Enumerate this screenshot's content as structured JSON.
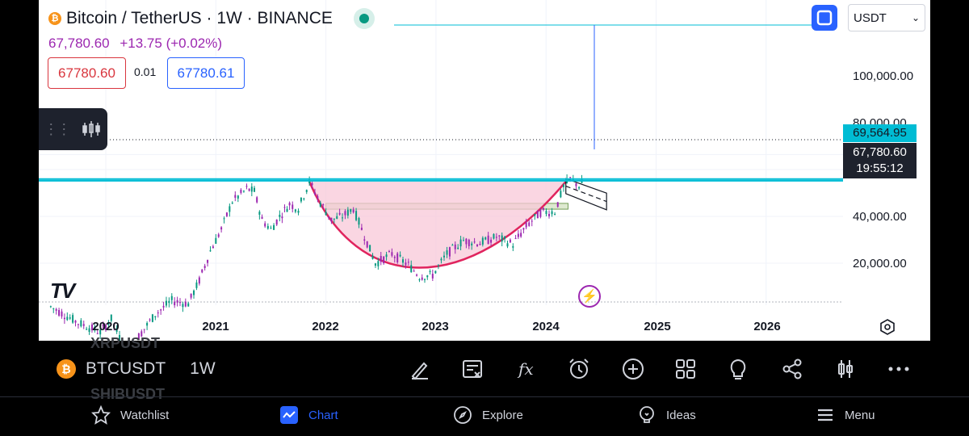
{
  "header": {
    "symbol_title": "Bitcoin / TetherUS · 1W · BINANCE",
    "coin_glyph": "₿",
    "last_price": "67,780.60",
    "change": "+13.75 (+0.02%)",
    "sell_price": "67780.60",
    "spread": "0.01",
    "buy_price": "67780.61",
    "currency": "USDT"
  },
  "colors": {
    "up": "#089981",
    "down": "#9c27b0",
    "cup_fill": "#f8c8d8",
    "cup_stroke": "#e0245e",
    "zone_fill": "#d9e6c8",
    "price_line": "#00bcd4",
    "accent": "#2962ff"
  },
  "price_axis": {
    "labels": [
      "100,000.00",
      "80,000.00",
      "40,000.00",
      "20,000.00"
    ],
    "tag_high": "69,564.95",
    "tag_last": "67,780.60",
    "countdown": "19:55:12"
  },
  "time_axis": {
    "labels": [
      "2020",
      "2021",
      "2022",
      "2023",
      "2024",
      "2025",
      "2026"
    ]
  },
  "chart_data": {
    "type": "candlestick",
    "title": "Bitcoin / TetherUS · 1W · BINANCE",
    "x_range": [
      "2019-07",
      "2026-07"
    ],
    "y_scale": "log",
    "y_ticks": [
      20000,
      40000,
      80000,
      100000
    ],
    "x_ticks": [
      "2020",
      "2021",
      "2022",
      "2023",
      "2024",
      "2025",
      "2026"
    ],
    "series": [
      {
        "name": "BTCUSDT",
        "points": [
          {
            "t": 2019.5,
            "v": 10500
          },
          {
            "t": 2019.75,
            "v": 8300
          },
          {
            "t": 2019.95,
            "v": 7200
          },
          {
            "t": 2020.05,
            "v": 8800
          },
          {
            "t": 2020.2,
            "v": 5000
          },
          {
            "t": 2020.3,
            "v": 6800
          },
          {
            "t": 2020.45,
            "v": 9400
          },
          {
            "t": 2020.6,
            "v": 11500
          },
          {
            "t": 2020.75,
            "v": 11000
          },
          {
            "t": 2020.85,
            "v": 15500
          },
          {
            "t": 2020.95,
            "v": 24000
          },
          {
            "t": 2021.05,
            "v": 33000
          },
          {
            "t": 2021.15,
            "v": 50000
          },
          {
            "t": 2021.28,
            "v": 60000
          },
          {
            "t": 2021.35,
            "v": 58000
          },
          {
            "t": 2021.42,
            "v": 38000
          },
          {
            "t": 2021.5,
            "v": 33000
          },
          {
            "t": 2021.58,
            "v": 40000
          },
          {
            "t": 2021.67,
            "v": 48000
          },
          {
            "t": 2021.75,
            "v": 45000
          },
          {
            "t": 2021.85,
            "v": 67000
          },
          {
            "t": 2021.95,
            "v": 49000
          },
          {
            "t": 2022.05,
            "v": 38000
          },
          {
            "t": 2022.15,
            "v": 40000
          },
          {
            "t": 2022.25,
            "v": 45000
          },
          {
            "t": 2022.35,
            "v": 30000
          },
          {
            "t": 2022.45,
            "v": 20000
          },
          {
            "t": 2022.6,
            "v": 23000
          },
          {
            "t": 2022.75,
            "v": 19500
          },
          {
            "t": 2022.85,
            "v": 16500
          },
          {
            "t": 2022.97,
            "v": 16800
          },
          {
            "t": 2023.1,
            "v": 23000
          },
          {
            "t": 2023.25,
            "v": 28000
          },
          {
            "t": 2023.4,
            "v": 27000
          },
          {
            "t": 2023.55,
            "v": 29500
          },
          {
            "t": 2023.7,
            "v": 26500
          },
          {
            "t": 2023.82,
            "v": 34500
          },
          {
            "t": 2023.95,
            "v": 42500
          },
          {
            "t": 2024.08,
            "v": 43000
          },
          {
            "t": 2024.16,
            "v": 62000
          },
          {
            "t": 2024.22,
            "v": 69500
          },
          {
            "t": 2024.3,
            "v": 63000
          },
          {
            "t": 2024.35,
            "v": 67780
          }
        ]
      }
    ],
    "annotations": [
      {
        "type": "cup",
        "from": 2021.85,
        "to": 2024.18,
        "bottom": 16500,
        "rim": 67000
      },
      {
        "type": "zone",
        "from": 2022.0,
        "to": 2024.2,
        "low": 44500,
        "high": 48500
      },
      {
        "type": "channel",
        "from": 2024.18,
        "to": 2024.55,
        "top": 70000,
        "bottom": 56000
      },
      {
        "type": "hline",
        "value": 69564.95
      },
      {
        "type": "hline",
        "value": 67780.6
      }
    ]
  },
  "toolbar": {
    "symbol": "BTCUSDT",
    "interval": "1W",
    "ghost_above": "XRPUSDT",
    "ghost_below": "SHIBUSDT"
  },
  "nav": {
    "watchlist": "Watchlist",
    "chart": "Chart",
    "explore": "Explore",
    "ideas": "Ideas",
    "menu": "Menu"
  },
  "icons": [
    "pen-icon",
    "note-icon",
    "fx-icon",
    "alarm-icon",
    "plus-icon",
    "grid-icon",
    "bulb-icon",
    "share-icon",
    "candles-icon",
    "more-icon",
    "star-icon",
    "chart-icon",
    "compass-icon",
    "ideas-icon",
    "menu-icon",
    "gear-icon",
    "bolt-icon",
    "fullscreen-icon"
  ]
}
